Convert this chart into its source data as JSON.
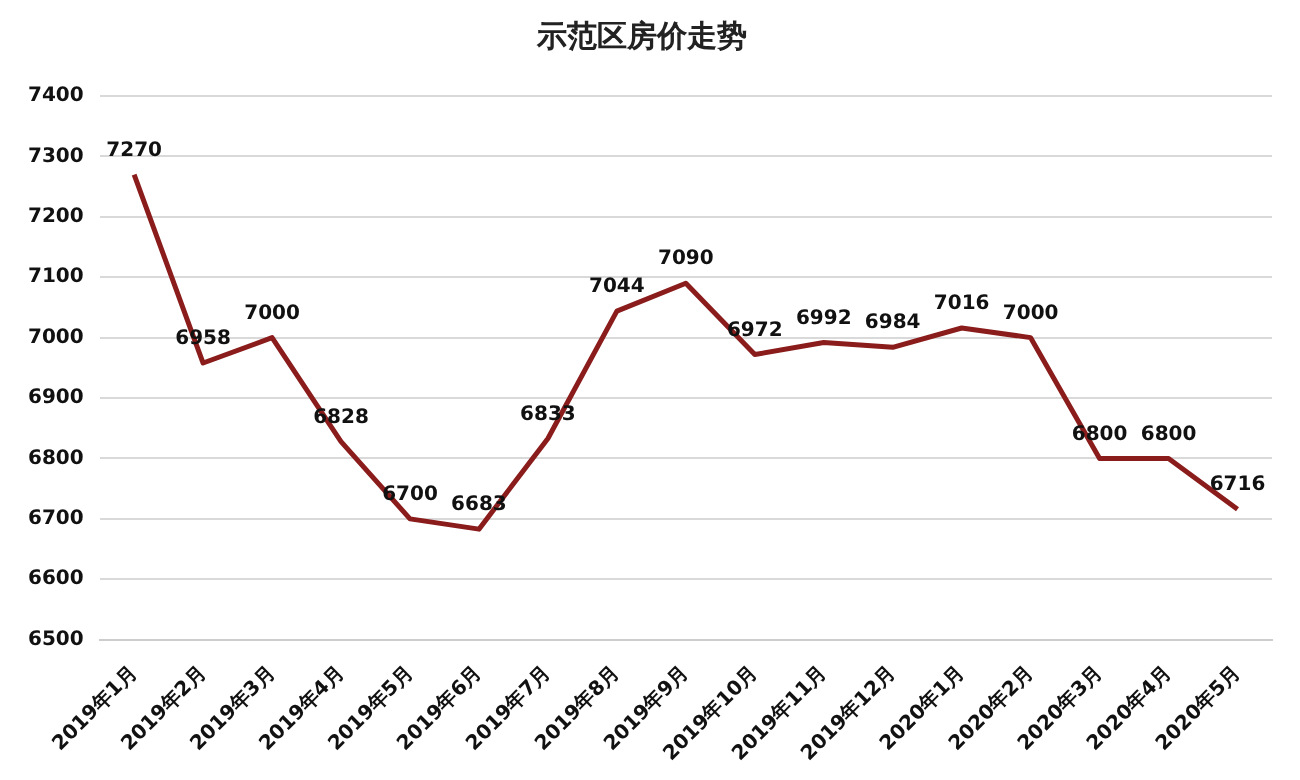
{
  "chart_data": {
    "type": "line",
    "title": "示范区房价走势",
    "categories": [
      "2019年1月",
      "2019年2月",
      "2019年3月",
      "2019年4月",
      "2019年5月",
      "2019年6月",
      "2019年7月",
      "2019年8月",
      "2019年9月",
      "2019年10月",
      "2019年11月",
      "2019年12月",
      "2020年1月",
      "2020年2月",
      "2020年3月",
      "2020年4月",
      "2020年5月"
    ],
    "series": [
      {
        "color": "#8b1c1c",
        "values": [
          7270,
          6958,
          7000,
          6828,
          6700,
          6683,
          6833,
          7044,
          7090,
          6972,
          6992,
          6984,
          7016,
          7000,
          6800,
          6800,
          6716
        ]
      }
    ],
    "ylim": [
      6500,
      7400
    ],
    "yticks": [
      6500,
      6600,
      6700,
      6800,
      6900,
      7000,
      7100,
      7200,
      7300,
      7400
    ],
    "grid": "y",
    "legend": false,
    "marker": "none",
    "line_style": "solid",
    "data_labels": true
  }
}
